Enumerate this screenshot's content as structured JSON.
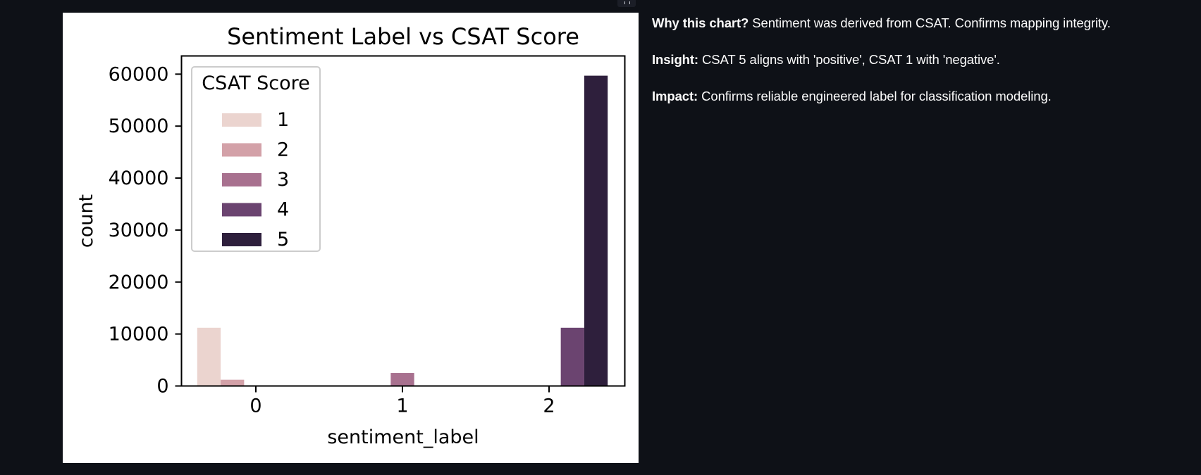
{
  "colors": {
    "page_background": "#0e1117",
    "text": "#fafafa",
    "chart_background": "#ffffff",
    "palette": [
      "#ebd4cf",
      "#d3a1a8",
      "#a8718f",
      "#6b4470",
      "#2e1f3c"
    ]
  },
  "icons": {
    "fullscreen": "fullscreen-icon"
  },
  "notes": [
    {
      "label": "Why this chart?",
      "text": " Sentiment was derived from CSAT. Confirms mapping integrity."
    },
    {
      "label": "Insight:",
      "text": " CSAT 5 aligns with 'positive', CSAT 1 with 'negative'."
    },
    {
      "label": "Impact:",
      "text": " Confirms reliable engineered label for classification modeling."
    }
  ],
  "chart_data": {
    "type": "bar",
    "title": "Sentiment Label vs CSAT Score",
    "xlabel": "sentiment_label",
    "ylabel": "count",
    "categories": [
      "0",
      "1",
      "2"
    ],
    "ylim": [
      0,
      63500
    ],
    "yticks": [
      0,
      10000,
      20000,
      30000,
      40000,
      50000,
      60000
    ],
    "grid": false,
    "legend": {
      "title": "CSAT Score",
      "placement": "top-left"
    },
    "series": [
      {
        "name": "1",
        "values": [
          11200,
          0,
          0
        ]
      },
      {
        "name": "2",
        "values": [
          1200,
          0,
          0
        ]
      },
      {
        "name": "3",
        "values": [
          0,
          2500,
          0
        ]
      },
      {
        "name": "4",
        "values": [
          0,
          0,
          11200
        ]
      },
      {
        "name": "5",
        "values": [
          0,
          0,
          59700
        ]
      }
    ]
  }
}
